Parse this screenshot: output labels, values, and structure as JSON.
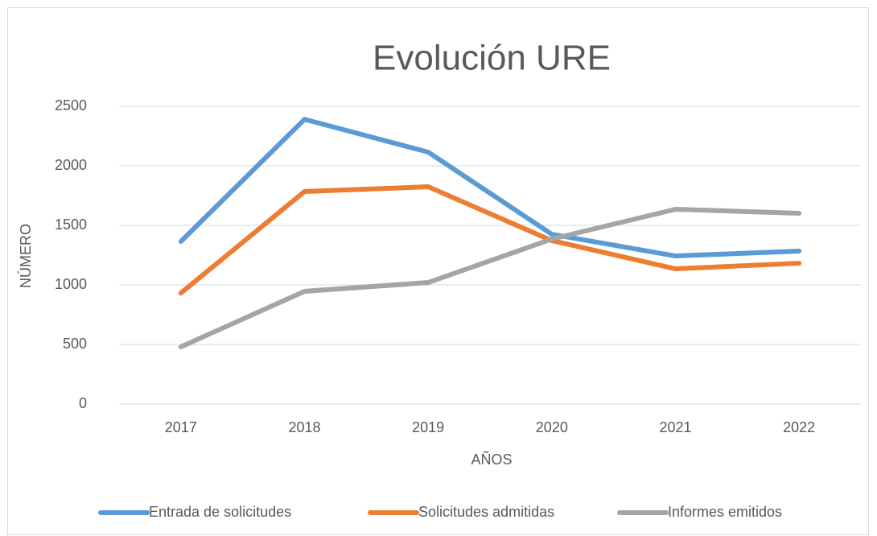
{
  "chart_data": {
    "type": "line",
    "title": "Evolución URE",
    "x_label": "AÑOS",
    "y_label": "NÚMERO",
    "categories": [
      "2017",
      "2018",
      "2019",
      "2020",
      "2021",
      "2022"
    ],
    "series": [
      {
        "name": "Entrada de solicitudes",
        "color": "#5b9bd5",
        "values": [
          1365,
          2390,
          2115,
          1425,
          1243,
          1284
        ]
      },
      {
        "name": "Solicitudes admitidas",
        "color": "#ed7d31",
        "values": [
          932,
          1784,
          1824,
          1372,
          1135,
          1182
        ]
      },
      {
        "name": "Informes emitidos",
        "color": "#a5a5a5",
        "values": [
          480,
          946,
          1020,
          1385,
          1635,
          1601
        ]
      }
    ],
    "ylim": [
      0,
      2500
    ],
    "yticks": [
      0,
      500,
      1000,
      1500,
      2000,
      2500
    ],
    "grid": true,
    "legend": "bottom"
  }
}
